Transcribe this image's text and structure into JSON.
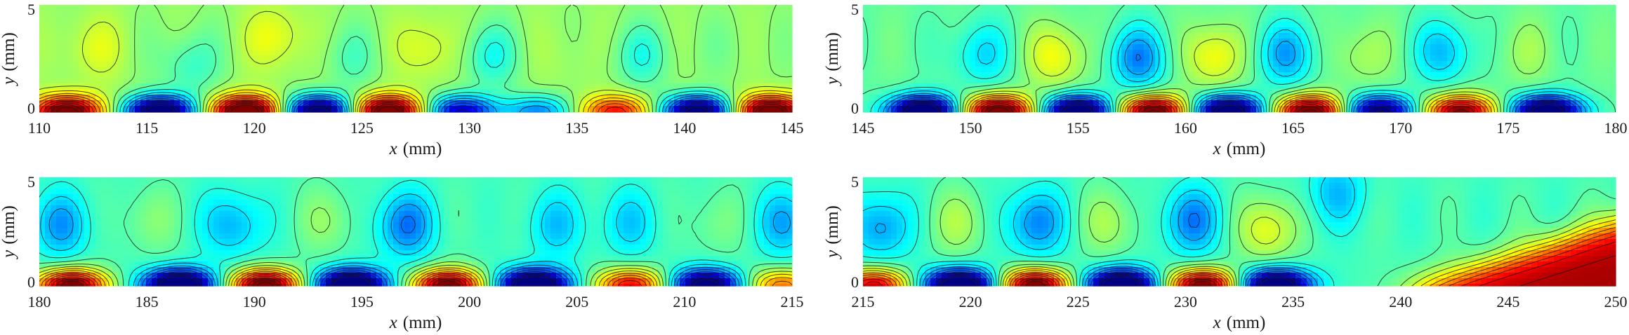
{
  "chart_data": [
    {
      "type": "heatmap",
      "xlim": [
        110,
        145
      ],
      "ylim": [
        0,
        5
      ],
      "xticks": [
        110,
        115,
        120,
        125,
        130,
        135,
        140,
        145
      ],
      "yticks": [
        0,
        5
      ],
      "xlabel_var": "x",
      "xlabel_unit": "(mm)",
      "ylabel_var": "y",
      "ylabel_unit": "(mm)",
      "wall_features": [
        {
          "x": 111.3,
          "sign": 1,
          "amp": 0.9
        },
        {
          "x": 115.6,
          "sign": -1,
          "amp": 1.0
        },
        {
          "x": 119.6,
          "sign": 1,
          "amp": 1.0
        },
        {
          "x": 123.0,
          "sign": -1,
          "amp": 0.95
        },
        {
          "x": 126.2,
          "sign": 1,
          "amp": 0.95
        },
        {
          "x": 129.6,
          "sign": -1,
          "amp": 0.7
        },
        {
          "x": 133.2,
          "sign": -1,
          "amp": 0.4
        },
        {
          "x": 136.8,
          "sign": 1,
          "amp": 0.55
        },
        {
          "x": 140.6,
          "sign": -1,
          "amp": 0.95
        },
        {
          "x": 144.0,
          "sign": 1,
          "amp": 0.95
        }
      ],
      "upper_features": [
        {
          "x": 112.5,
          "y": 3.0,
          "sign": 0.35
        },
        {
          "x": 117.0,
          "y": 2.2,
          "sign": -0.45
        },
        {
          "x": 121.0,
          "y": 3.5,
          "sign": 0.45
        },
        {
          "x": 124.5,
          "y": 2.5,
          "sign": -0.3
        },
        {
          "x": 128.0,
          "y": 3.0,
          "sign": 0.4
        },
        {
          "x": 131.0,
          "y": 2.6,
          "sign": -0.55
        },
        {
          "x": 134.5,
          "y": 2.7,
          "sign": 0.1
        },
        {
          "x": 138.0,
          "y": 2.6,
          "sign": -0.5
        },
        {
          "x": 142.0,
          "y": 3.0,
          "sign": -0.1
        }
      ],
      "background": 0.1
    },
    {
      "type": "heatmap",
      "xlim": [
        145,
        180
      ],
      "ylim": [
        0,
        5
      ],
      "xticks": [
        145,
        150,
        155,
        160,
        165,
        170,
        175,
        180
      ],
      "yticks": [
        0,
        5
      ],
      "xlabel_var": "x",
      "xlabel_unit": "(mm)",
      "ylabel_var": "y",
      "ylabel_unit": "(mm)",
      "wall_features": [
        {
          "x": 147.8,
          "sign": -1,
          "amp": 1.0
        },
        {
          "x": 151.3,
          "sign": 1,
          "amp": 1.0
        },
        {
          "x": 155.0,
          "sign": -1,
          "amp": 0.95
        },
        {
          "x": 158.5,
          "sign": 1,
          "amp": 0.95
        },
        {
          "x": 162.0,
          "sign": -1,
          "amp": 0.95
        },
        {
          "x": 165.8,
          "sign": 1,
          "amp": 0.95
        },
        {
          "x": 169.0,
          "sign": -1,
          "amp": 0.8
        },
        {
          "x": 172.8,
          "sign": 1,
          "amp": 0.85
        },
        {
          "x": 176.8,
          "sign": -1,
          "amp": 0.95
        }
      ],
      "upper_features": [
        {
          "x": 150.5,
          "y": 2.7,
          "sign": -0.6
        },
        {
          "x": 154.0,
          "y": 2.6,
          "sign": 0.7
        },
        {
          "x": 157.8,
          "y": 2.5,
          "sign": -1.0
        },
        {
          "x": 161.3,
          "y": 2.6,
          "sign": 0.75
        },
        {
          "x": 164.7,
          "y": 2.7,
          "sign": -0.85
        },
        {
          "x": 168.2,
          "y": 2.7,
          "sign": 0.35
        },
        {
          "x": 172.0,
          "y": 2.8,
          "sign": -0.75
        },
        {
          "x": 175.8,
          "y": 2.8,
          "sign": 0.25
        }
      ],
      "background": -0.15
    },
    {
      "type": "heatmap",
      "xlim": [
        180,
        215
      ],
      "ylim": [
        0,
        5
      ],
      "xticks": [
        180,
        185,
        190,
        195,
        200,
        205,
        210,
        215
      ],
      "yticks": [
        0,
        5
      ],
      "xlabel_var": "x",
      "xlabel_unit": "(mm)",
      "ylabel_var": "y",
      "ylabel_unit": "(mm)",
      "wall_features": [
        {
          "x": 181.5,
          "sign": 1,
          "amp": 0.95
        },
        {
          "x": 186.5,
          "sign": -1,
          "amp": 1.0
        },
        {
          "x": 190.5,
          "sign": 1,
          "amp": 1.0
        },
        {
          "x": 194.5,
          "sign": -1,
          "amp": 1.0
        },
        {
          "x": 199.0,
          "sign": 1,
          "amp": 0.95
        },
        {
          "x": 203.0,
          "sign": -1,
          "amp": 1.0
        },
        {
          "x": 207.5,
          "sign": 1,
          "amp": 0.7
        },
        {
          "x": 211.0,
          "sign": -1,
          "amp": 0.85
        },
        {
          "x": 214.5,
          "sign": 1,
          "amp": 0.5
        }
      ],
      "upper_features": [
        {
          "x": 181.0,
          "y": 2.8,
          "sign": -0.75
        },
        {
          "x": 185.0,
          "y": 3.0,
          "sign": 0.3
        },
        {
          "x": 189.0,
          "y": 2.8,
          "sign": -0.7
        },
        {
          "x": 193.5,
          "y": 3.0,
          "sign": 0.35
        },
        {
          "x": 197.0,
          "y": 2.8,
          "sign": -0.95
        },
        {
          "x": 201.0,
          "y": 3.0,
          "sign": 0.05
        },
        {
          "x": 204.0,
          "y": 2.8,
          "sign": -0.55
        },
        {
          "x": 207.5,
          "y": 2.9,
          "sign": -0.5
        },
        {
          "x": 211.3,
          "y": 2.9,
          "sign": 0.25
        },
        {
          "x": 214.7,
          "y": 2.9,
          "sign": -0.7
        }
      ],
      "background": -0.3
    },
    {
      "type": "heatmap",
      "xlim": [
        215,
        250
      ],
      "ylim": [
        0,
        5
      ],
      "xticks": [
        215,
        220,
        225,
        230,
        235,
        240,
        245,
        250
      ],
      "yticks": [
        0,
        5
      ],
      "xlabel_var": "x",
      "xlabel_unit": "(mm)",
      "ylabel_var": "y",
      "ylabel_unit": "(mm)",
      "wall_features": [
        {
          "x": 215.5,
          "sign": 1,
          "amp": 0.75
        },
        {
          "x": 219.5,
          "sign": -1,
          "amp": 1.0
        },
        {
          "x": 223.0,
          "sign": 1,
          "amp": 0.95
        },
        {
          "x": 227.0,
          "sign": -1,
          "amp": 1.0
        },
        {
          "x": 230.8,
          "sign": 1,
          "amp": 0.95
        },
        {
          "x": 234.2,
          "sign": -1,
          "amp": 0.95
        }
      ],
      "upper_features": [
        {
          "x": 215.8,
          "y": 2.7,
          "sign": -0.8
        },
        {
          "x": 219.5,
          "y": 2.9,
          "sign": 0.45
        },
        {
          "x": 223.0,
          "y": 2.9,
          "sign": -0.9
        },
        {
          "x": 226.5,
          "y": 2.9,
          "sign": 0.45
        },
        {
          "x": 230.3,
          "y": 3.0,
          "sign": -0.9
        },
        {
          "x": 233.8,
          "y": 2.6,
          "sign": 0.8
        },
        {
          "x": 237.0,
          "y": 4.3,
          "sign": -0.6
        }
      ],
      "background": -0.3,
      "transition": {
        "x0": 241.5,
        "slope": 0.33,
        "y_start": 0.0,
        "level": 2.4
      }
    }
  ]
}
